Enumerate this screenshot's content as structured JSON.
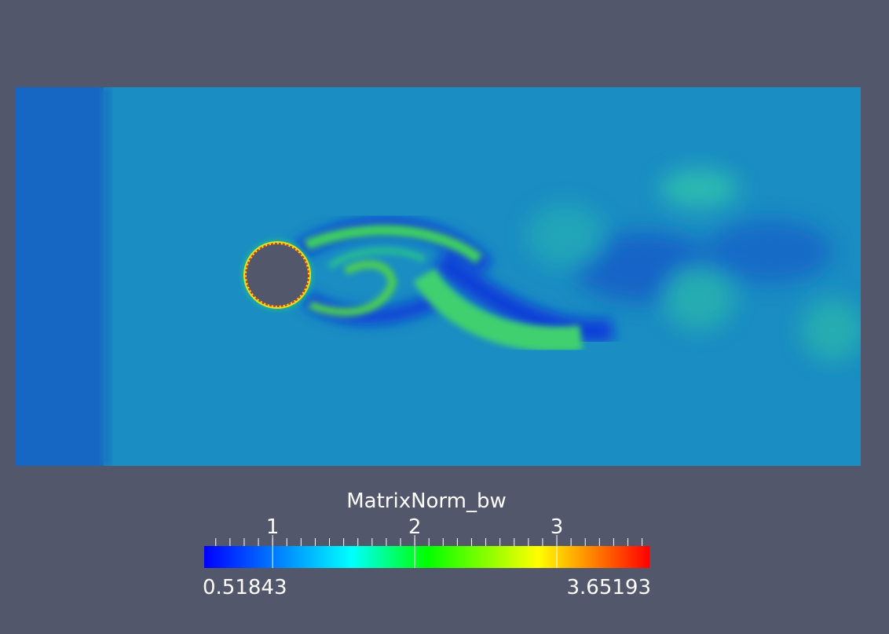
{
  "colorbar": {
    "title": "MatrixNorm_bw",
    "range": [
      0.51843,
      3.65193
    ],
    "ticks": [
      1,
      2,
      3
    ]
  }
}
